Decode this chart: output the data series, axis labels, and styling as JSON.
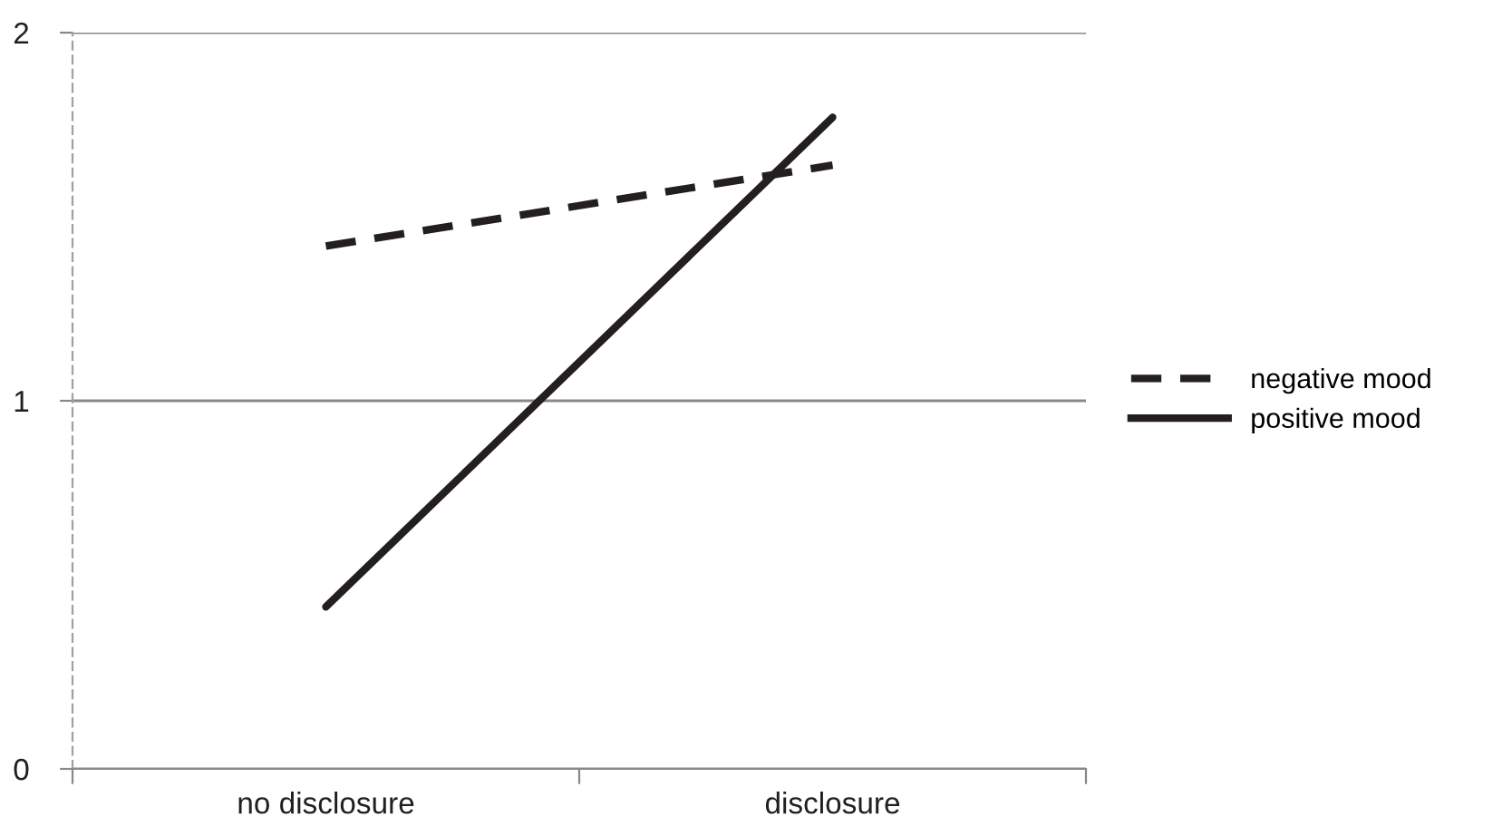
{
  "chart_data": {
    "type": "line",
    "categories": [
      "no disclosure",
      "disclosure"
    ],
    "series": [
      {
        "name": "negative mood",
        "color": "#231f20",
        "values": [
          1.42,
          1.64
        ],
        "line_style": "dashed"
      },
      {
        "name": "positive mood",
        "color": "#231f20",
        "values": [
          0.44,
          1.77
        ],
        "line_style": "solid"
      }
    ],
    "ylim": [
      0,
      2
    ],
    "yticks": [
      0,
      1,
      2
    ],
    "grid": "y",
    "legend": "right",
    "marker": "none"
  }
}
